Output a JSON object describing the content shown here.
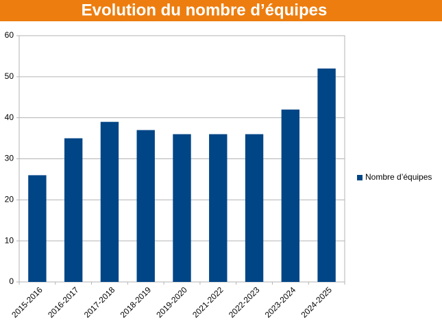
{
  "chart_data": {
    "type": "bar",
    "title": "Evolution du nombre d’équipes",
    "categories": [
      "2015-2016",
      "2016-2017",
      "2017-2018",
      "2018-2019",
      "2019-2020",
      "2021-2022",
      "2022-2023",
      "2023-2024",
      "2024-2025"
    ],
    "series": [
      {
        "name": "Nombre d’équipes",
        "color": "#004586",
        "values": [
          26,
          35,
          39,
          37,
          36,
          36,
          36,
          42,
          52
        ]
      }
    ],
    "ylim": [
      0,
      60
    ],
    "yticks": [
      0,
      10,
      20,
      30,
      40,
      50,
      60
    ],
    "grid": true,
    "legend": "right"
  }
}
